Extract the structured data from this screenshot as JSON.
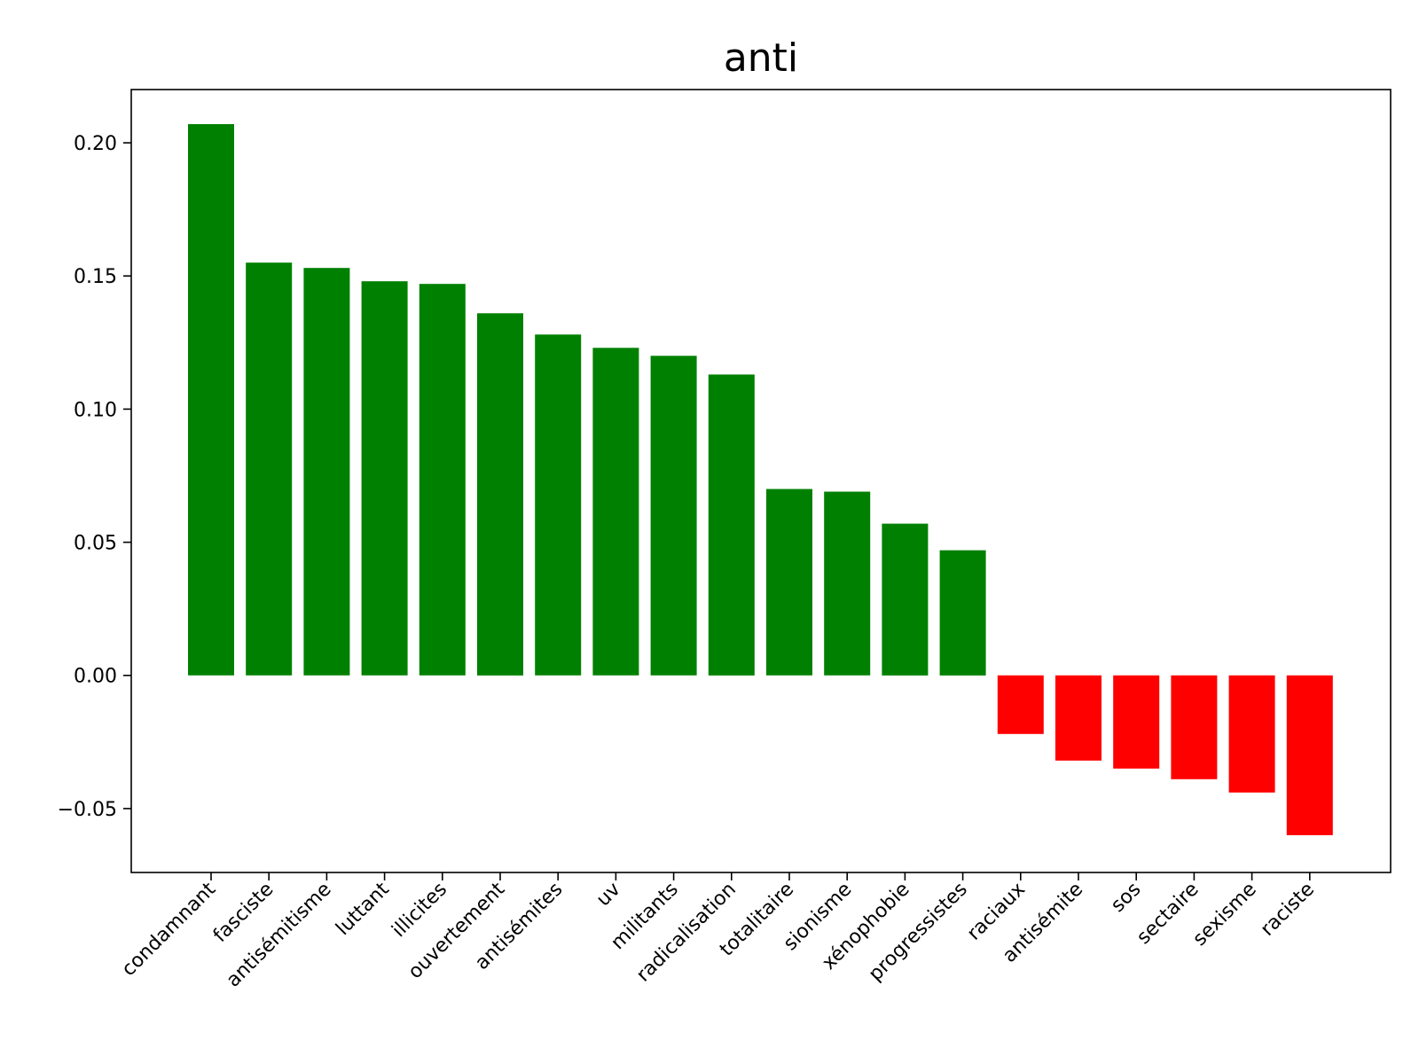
{
  "chart_data": {
    "type": "bar",
    "title": "anti",
    "xlabel": "",
    "ylabel": "",
    "categories": [
      "condamnant",
      "fasciste",
      "antisémitisme",
      "luttant",
      "illicites",
      "ouvertement",
      "antisémites",
      "uv",
      "militants",
      "radicalisation",
      "totalitaire",
      "sionisme",
      "xénophobie",
      "progressistes",
      "raciaux",
      "antisémite",
      "sos",
      "sectaire",
      "sexisme",
      "raciste"
    ],
    "values": [
      0.207,
      0.155,
      0.153,
      0.148,
      0.147,
      0.136,
      0.128,
      0.123,
      0.12,
      0.113,
      0.07,
      0.069,
      0.057,
      0.047,
      -0.022,
      -0.032,
      -0.035,
      -0.039,
      -0.044,
      -0.06
    ],
    "ylim": [
      -0.074,
      0.22
    ],
    "yticks": [
      -0.05,
      0.0,
      0.05,
      0.1,
      0.15,
      0.2
    ],
    "ytick_labels": [
      "−0.05",
      "0.00",
      "0.05",
      "0.10",
      "0.15",
      "0.20"
    ],
    "grid": false,
    "legend": "none",
    "colors": {
      "positive": "#008000",
      "negative": "#ff0000"
    }
  }
}
